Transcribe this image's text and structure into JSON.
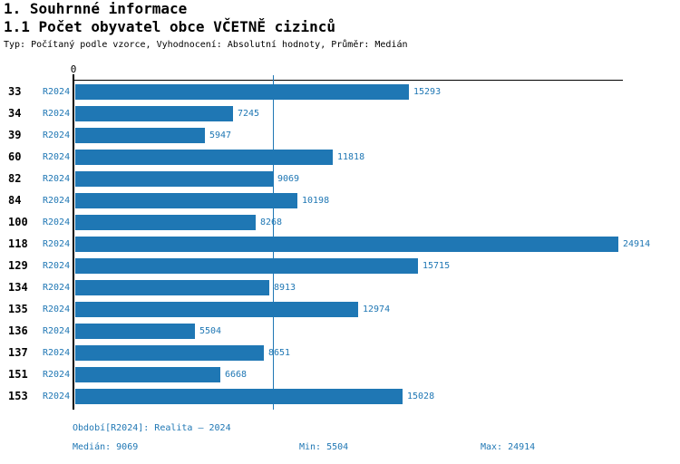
{
  "header": {
    "title": "1. Souhrnné informace",
    "subtitle": "1.1 Počet obyvatel obce VČETNĚ cizinců",
    "description": "Typ: Počítaný podle vzorce, Vyhodnocení: Absolutní hodnoty, Průměr: Medián"
  },
  "chart_data": {
    "type": "bar",
    "orientation": "horizontal",
    "title": "1.1 Počet obyvatel obce VČETNĚ cizinců",
    "categories": [
      "33",
      "34",
      "39",
      "60",
      "82",
      "84",
      "100",
      "118",
      "129",
      "134",
      "135",
      "136",
      "137",
      "151",
      "153"
    ],
    "series": [
      {
        "name": "R2024",
        "values": [
          15293,
          7245,
          5947,
          11818,
          9069,
          10198,
          8268,
          24914,
          15715,
          8913,
          12974,
          5504,
          8651,
          6668,
          15028
        ]
      }
    ],
    "xlabel": "",
    "ylabel": "",
    "xlim": [
      0,
      24914
    ],
    "x_axis_ticks": [
      "0"
    ],
    "median_line_value": 9069,
    "grid": "single vertical median gridline",
    "legend_position": "none",
    "bar_color": "#1f77b4",
    "statistics": {
      "median": 9069,
      "min": 5504,
      "max": 24914
    }
  },
  "footer": {
    "period": "Období[R2024]: Realita – 2024",
    "median": "Medián: 9069",
    "min": "Min: 5504",
    "max": "Max: 24914"
  }
}
